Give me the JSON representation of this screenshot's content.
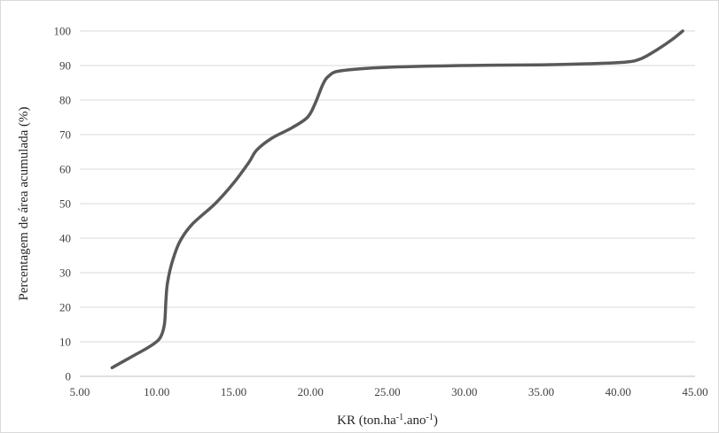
{
  "chart_data": {
    "type": "line",
    "title": "",
    "xlabel": {
      "base": "KR (ton.ha",
      "sup1": "-1",
      "mid": ".ano",
      "sup2": "-1",
      "end": ")"
    },
    "ylabel": "Percentagem de área acumulada (%)",
    "xlim": [
      5,
      45
    ],
    "ylim": [
      0,
      100
    ],
    "x_ticks": [
      "5.00",
      "10.00",
      "15.00",
      "20.00",
      "25.00",
      "30.00",
      "35.00",
      "40.00",
      "45.00"
    ],
    "x_tick_values": [
      5,
      10,
      15,
      20,
      25,
      30,
      35,
      40,
      45
    ],
    "y_ticks": [
      "0",
      "10",
      "20",
      "30",
      "40",
      "50",
      "60",
      "70",
      "80",
      "90",
      "100"
    ],
    "y_tick_values": [
      0,
      10,
      20,
      30,
      40,
      50,
      60,
      70,
      80,
      90,
      100
    ],
    "grid": {
      "horizontal": true,
      "vertical": false
    },
    "legend": "none",
    "series": [
      {
        "color": "#595959",
        "x": [
          7.1,
          8.5,
          9.5,
          10.2,
          10.5,
          10.6,
          10.7,
          11.0,
          11.5,
          12.3,
          13.8,
          15.0,
          16.0,
          16.5,
          17.5,
          18.8,
          19.8,
          20.3,
          20.8,
          21.2,
          22.0,
          25.0,
          30.0,
          35.0,
          38.0,
          40.5,
          41.5,
          42.5,
          43.5,
          44.2
        ],
        "y": [
          2.5,
          6,
          8.5,
          11,
          15,
          22,
          27,
          33,
          39,
          44,
          50,
          56,
          62,
          65.5,
          69,
          72,
          75,
          79,
          84.5,
          87,
          88.5,
          89.5,
          90,
          90.2,
          90.5,
          91,
          92,
          94.5,
          97.5,
          100
        ]
      }
    ]
  }
}
